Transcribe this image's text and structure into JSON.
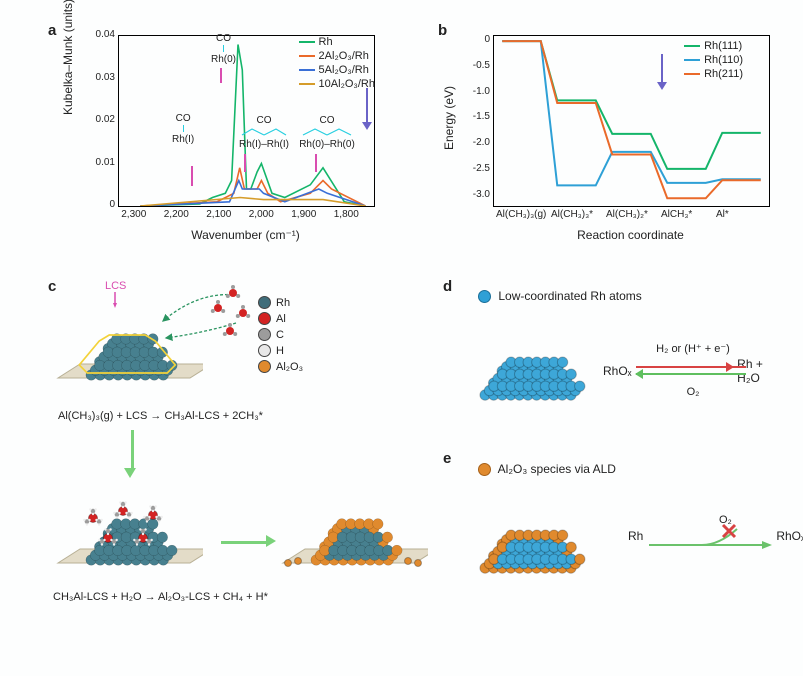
{
  "panel_labels": {
    "a": "a",
    "b": "b",
    "c": "c",
    "d": "d",
    "e": "e"
  },
  "chart_a": {
    "type": "line",
    "ylabel": "Kubelka–Munk (units)",
    "xlabel": "Wavenumber (cm⁻¹)",
    "ylim": [
      0,
      0.04
    ],
    "ytick_step": 0.01,
    "xlim": [
      2350,
      1750
    ],
    "xtick_labels": [
      "2,300",
      "2,200",
      "2,100",
      "2,000",
      "1,900",
      "1,800"
    ],
    "background": "#ffffff",
    "legend": [
      {
        "label": "Rh",
        "color": "#14b56a"
      },
      {
        "label": "2Al₂O₃/Rh",
        "color": "#ea6a2a"
      },
      {
        "label": "5Al₂O₃/Rh",
        "color": "#3a6fd6"
      },
      {
        "label": "10Al₂O₃/Rh",
        "color": "#d59c2a"
      }
    ],
    "annotations": [
      {
        "top": "CO",
        "bottom": "Rh(0)"
      },
      {
        "top": "CO",
        "bottom": "Rh(I)"
      },
      {
        "top": "CO",
        "bottom": "Rh(I)–Rh(I)"
      },
      {
        "top": "CO",
        "bottom": "Rh(0)–Rh(0)"
      }
    ],
    "peaks": {
      "rh": [
        [
          1770,
          0.0
        ],
        [
          1820,
          0.001
        ],
        [
          1870,
          0.009
        ],
        [
          1900,
          0.005
        ],
        [
          1960,
          0.002
        ],
        [
          1990,
          0.003
        ],
        [
          2015,
          0.01
        ],
        [
          2025,
          0.008
        ],
        [
          2040,
          0.004
        ],
        [
          2050,
          0.004
        ],
        [
          2060,
          0.032
        ],
        [
          2070,
          0.038
        ],
        [
          2085,
          0.006
        ],
        [
          2100,
          0.003
        ],
        [
          2130,
          0.002
        ],
        [
          2160,
          0.0005
        ],
        [
          2300,
          0
        ]
      ],
      "al2": [
        [
          1770,
          0
        ],
        [
          1850,
          0.004
        ],
        [
          1870,
          0.006
        ],
        [
          1900,
          0.003
        ],
        [
          1970,
          0.001
        ],
        [
          2000,
          0.003
        ],
        [
          2015,
          0.006
        ],
        [
          2025,
          0.004
        ],
        [
          2055,
          0.004
        ],
        [
          2066,
          0.009
        ],
        [
          2080,
          0.003
        ],
        [
          2120,
          0.001
        ],
        [
          2300,
          0
        ]
      ],
      "al5": [
        [
          1770,
          0
        ],
        [
          1860,
          0.003
        ],
        [
          1880,
          0.004
        ],
        [
          1960,
          0.001
        ],
        [
          2010,
          0.003
        ],
        [
          2020,
          0.004
        ],
        [
          2060,
          0.004
        ],
        [
          2068,
          0.006
        ],
        [
          2090,
          0.001
        ],
        [
          2300,
          0
        ]
      ],
      "al10": [
        [
          1770,
          0
        ],
        [
          1870,
          0.0015
        ],
        [
          2010,
          0.0015
        ],
        [
          2065,
          0.002
        ],
        [
          2300,
          0
        ]
      ]
    },
    "arrow_color": "#6a63c7"
  },
  "chart_b": {
    "type": "line-step",
    "ylabel": "Energy (eV)",
    "xlabel": "Reaction coordinate",
    "ylim": [
      -3.2,
      0.1
    ],
    "yticks": [
      0,
      -0.5,
      -1.0,
      -1.5,
      -2.0,
      -2.5,
      -3.0
    ],
    "xticks": [
      "Al(CH₃)₃(g)",
      "Al(CH₃)₃*",
      "Al(CH₃)₂*",
      "AlCH₃*",
      "Al*"
    ],
    "legend": [
      {
        "label": "Rh(111)",
        "color": "#14b56a"
      },
      {
        "label": "Rh(110)",
        "color": "#2ea0d6"
      },
      {
        "label": "Rh(211)",
        "color": "#ea6a2a"
      }
    ],
    "series": {
      "Rh111": [
        0,
        -1.15,
        -1.8,
        -2.48,
        -1.78
      ],
      "Rh110": [
        0,
        -2.8,
        -2.15,
        -2.75,
        -2.68
      ],
      "Rh211": [
        0,
        -1.2,
        -2.2,
        -3.05,
        -2.7
      ]
    },
    "arrow_color": "#6a63c7"
  },
  "panel_c": {
    "lcs_label": "LCS",
    "legend": [
      {
        "label": "Rh",
        "color": "#3f6d7a"
      },
      {
        "label": "Al",
        "color": "#d32323"
      },
      {
        "label": "C",
        "color": "#9c9c9c"
      },
      {
        "label": "H",
        "color": "#e8e8e8"
      },
      {
        "label": "Al₂O₃",
        "color": "#e08a2e"
      }
    ],
    "eq1": "Al(CH₃)₃(g) + LCS → CH₃Al-LCS + 2CH₃*",
    "eq2": "CH₃Al-LCS + H₂O → Al₂O₃-LCS + CH₄ + H*",
    "colors": {
      "rh": "#47808f",
      "rh_light": "#6aa0ad",
      "al": "#d32323",
      "al2o3": "#e08a2e",
      "c": "#9c9c9c",
      "h": "#eeeeee",
      "substrate": "#e3dcc8"
    }
  },
  "panel_d": {
    "title": "Low-coordinated Rh atoms",
    "dot_color": "#2ea0d6",
    "np_color": "#3da7d8",
    "rxn_top": "H₂ or (H⁺ + e⁻)",
    "rxn_bottom": "O₂",
    "left": "RhOₓ",
    "right": "Rh + H₂O",
    "arrow_fwd_color": "#d84343",
    "arrow_rev_color": "#5fbf5f"
  },
  "panel_e": {
    "title": "Al₂O₃ species via ALD",
    "dot_color": "#e08a2e",
    "np_color": "#3da7d8",
    "edge_color": "#e08a2e",
    "left": "Rh",
    "right": "RhOₓ",
    "label": "O₂",
    "arrow_color": "#6bc26b",
    "x_color": "#d84343"
  }
}
